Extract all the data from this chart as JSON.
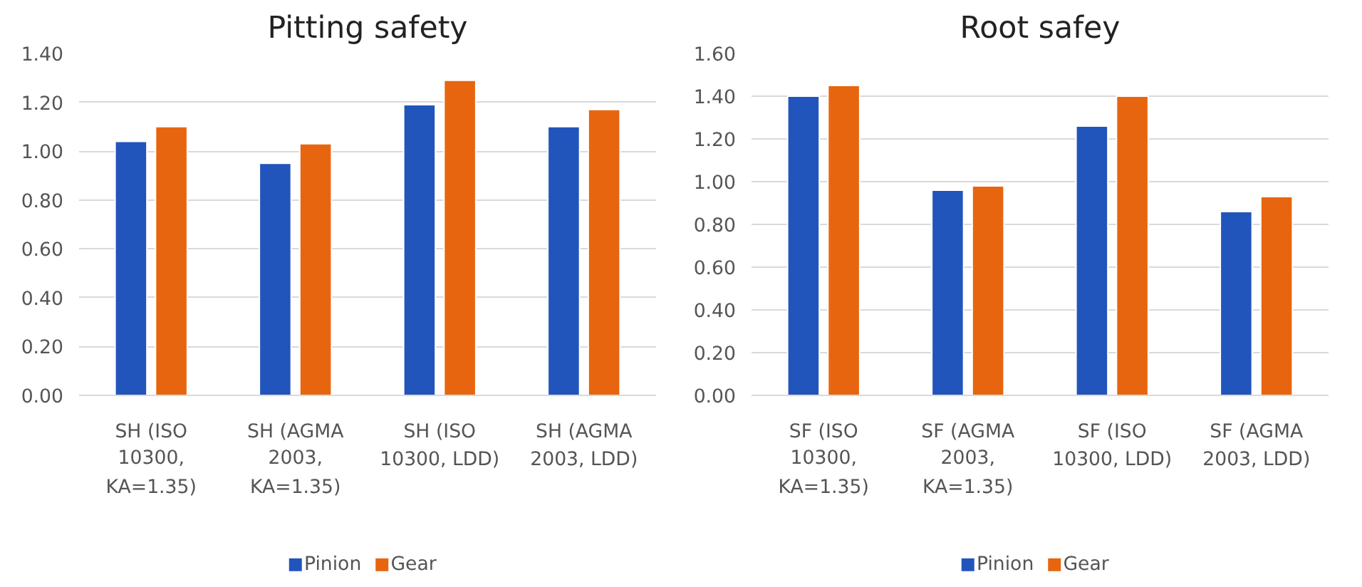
{
  "chart_data": [
    {
      "type": "bar",
      "title": "Pitting safety",
      "categories": [
        "SH (ISO 10300, KA=1.35)",
        "SH (AGMA 2003, KA=1.35)",
        "SH (ISO 10300, LDD)",
        "SH (AGMA 2003, LDD)"
      ],
      "series": [
        {
          "name": "Pinion",
          "color": "#2155bb",
          "values": [
            1.04,
            0.95,
            1.19,
            1.1
          ]
        },
        {
          "name": "Gear",
          "color": "#e8650f",
          "values": [
            1.1,
            1.03,
            1.29,
            1.17
          ]
        }
      ],
      "ylim": [
        0,
        1.4
      ],
      "yticks": [
        {
          "value": 0,
          "label": "0.00"
        },
        {
          "value": 0.2,
          "label": "0.20"
        },
        {
          "value": 0.4,
          "label": "0.40"
        },
        {
          "value": 0.6,
          "label": "0.60"
        },
        {
          "value": 0.8,
          "label": "0.80"
        },
        {
          "value": 1.0,
          "label": "1.00"
        },
        {
          "value": 1.2,
          "label": "1.20"
        },
        {
          "value": 1.4,
          "label": "1.40"
        }
      ],
      "grid": "y",
      "legend": "bottom"
    },
    {
      "type": "bar",
      "title": "Root safey",
      "categories": [
        "SF (ISO 10300, KA=1.35)",
        "SF (AGMA 2003, KA=1.35)",
        "SF (ISO 10300, LDD)",
        "SF (AGMA 2003, LDD)"
      ],
      "series": [
        {
          "name": "Pinion",
          "color": "#2155bb",
          "values": [
            1.4,
            0.96,
            1.26,
            0.86
          ]
        },
        {
          "name": "Gear",
          "color": "#e8650f",
          "values": [
            1.45,
            0.98,
            1.4,
            0.93
          ]
        }
      ],
      "ylim": [
        0,
        1.6
      ],
      "yticks": [
        {
          "value": 0,
          "label": "0.00"
        },
        {
          "value": 0.2,
          "label": "0.20"
        },
        {
          "value": 0.4,
          "label": "0.40"
        },
        {
          "value": 0.6,
          "label": "0.60"
        },
        {
          "value": 0.8,
          "label": "0.80"
        },
        {
          "value": 1.0,
          "label": "1.00"
        },
        {
          "value": 1.2,
          "label": "1.20"
        },
        {
          "value": 1.4,
          "label": "1.40"
        },
        {
          "value": 1.6,
          "label": "1.60"
        }
      ],
      "grid": "y",
      "legend": "bottom"
    }
  ]
}
